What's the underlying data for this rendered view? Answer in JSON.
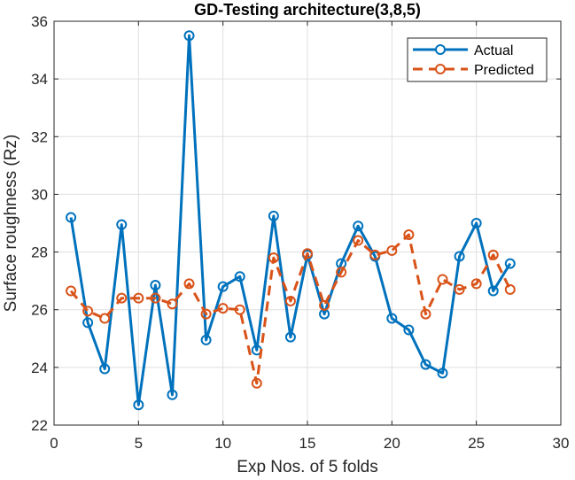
{
  "chart_data": {
    "type": "line",
    "title": "GD-Testing architecture(3,8,5)",
    "xlabel": "Exp Nos. of 5 folds",
    "ylabel": "Surface roughness (Rz)",
    "xlim": [
      0,
      30
    ],
    "ylim": [
      22,
      36
    ],
    "xticks": [
      0,
      5,
      10,
      15,
      20,
      25,
      30
    ],
    "yticks": [
      22,
      24,
      26,
      28,
      30,
      32,
      34,
      36
    ],
    "grid": true,
    "legend_position": "top-right",
    "x": [
      1,
      2,
      3,
      4,
      5,
      6,
      7,
      8,
      9,
      10,
      11,
      12,
      13,
      14,
      15,
      16,
      17,
      18,
      19,
      20,
      21,
      22,
      23,
      24,
      25,
      26,
      27
    ],
    "series": [
      {
        "name": "Actual",
        "color": "#0072BD",
        "line_style": "solid",
        "marker": "circle",
        "values": [
          29.2,
          25.55,
          23.95,
          28.95,
          22.7,
          26.85,
          23.05,
          35.5,
          24.95,
          26.8,
          27.15,
          24.6,
          29.25,
          25.05,
          27.9,
          25.85,
          27.6,
          28.9,
          27.85,
          25.7,
          25.3,
          24.1,
          23.8,
          27.85,
          29.0,
          26.65,
          27.6
        ]
      },
      {
        "name": "Predicted",
        "color": "#D95319",
        "line_style": "dashed",
        "marker": "circle",
        "values": [
          26.65,
          25.95,
          25.7,
          26.4,
          26.4,
          26.4,
          26.2,
          26.9,
          25.85,
          26.05,
          26.0,
          23.45,
          27.8,
          26.3,
          27.95,
          26.15,
          27.3,
          28.4,
          27.9,
          28.05,
          28.6,
          25.85,
          27.05,
          26.7,
          26.9,
          27.9,
          26.7
        ]
      }
    ]
  }
}
